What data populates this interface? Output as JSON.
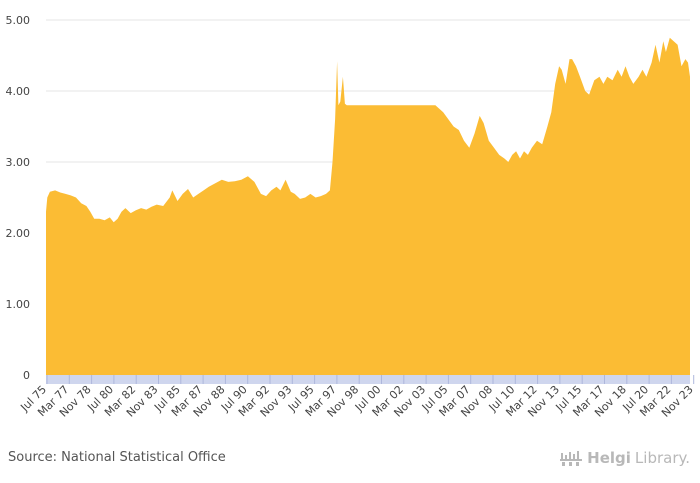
{
  "source_text": "Source: National Statistical Office",
  "logo": {
    "name": "HelgiLibrary.",
    "part1": "Helgi",
    "part2": "Library.",
    "icon": "helgi-library-icon"
  },
  "colors": {
    "area": "#fbbc34",
    "grid": "#e6e6e6",
    "axis_band": "#cfd6ee"
  },
  "chart_data": {
    "type": "area",
    "title": "",
    "xlabel": "",
    "ylabel": "",
    "ylim": [
      0,
      5
    ],
    "yticks": [
      "0",
      "1.00",
      "2.00",
      "3.00",
      "4.00",
      "5.00"
    ],
    "ytick_values": [
      0,
      1,
      2,
      3,
      4,
      5
    ],
    "xtick_labels": [
      "Jul 75",
      "Mar 77",
      "Nov 78",
      "Jul 80",
      "Mar 82",
      "Nov 83",
      "Jul 85",
      "Mar 87",
      "Nov 88",
      "Jul 90",
      "Mar 92",
      "Nov 93",
      "Jul 95",
      "Mar 97",
      "Nov 98",
      "Jul 00",
      "Mar 02",
      "Nov 03",
      "Jul 05",
      "Mar 07",
      "Nov 08",
      "Jul 10",
      "Mar 12",
      "Nov 13",
      "Jul 15",
      "Mar 17",
      "Nov 18",
      "Jul 20",
      "Mar 22",
      "Nov 23"
    ],
    "grid": true,
    "legend": "none",
    "series": [
      {
        "x": [
          1975.5,
          1975.6,
          1975.8,
          1976.2,
          1976.6,
          1977.0,
          1977.4,
          1977.8,
          1978.2,
          1978.6,
          1978.9,
          1979.2,
          1979.6,
          1980.0,
          1980.4,
          1980.7,
          1981.0,
          1981.3,
          1981.6,
          1982.0,
          1982.4,
          1982.8,
          1983.2,
          1983.6,
          1984.0,
          1984.5,
          1985.0,
          1985.2,
          1985.6,
          1986.0,
          1986.4,
          1986.8,
          1987.2,
          1987.6,
          1988.0,
          1988.5,
          1989.0,
          1989.5,
          1990.0,
          1990.5,
          1991.0,
          1991.5,
          1992.0,
          1992.4,
          1992.8,
          1993.2,
          1993.5,
          1993.9,
          1994.3,
          1994.6,
          1995.0,
          1995.4,
          1995.8,
          1996.2,
          1996.6,
          1997.0,
          1997.3,
          1997.5,
          1997.7,
          1997.85,
          1997.95,
          1998.1,
          1998.3,
          1998.45,
          1998.6,
          1998.8,
          2000.0,
          2002.0,
          2004.0,
          2005.4,
          2005.7,
          2006.0,
          2006.4,
          2006.8,
          2007.2,
          2007.6,
          2008.0,
          2008.4,
          2008.8,
          2009.1,
          2009.5,
          2009.9,
          2010.3,
          2010.7,
          2011.0,
          2011.3,
          2011.6,
          2011.9,
          2012.2,
          2012.5,
          2012.8,
          2013.2,
          2013.6,
          2014.0,
          2014.3,
          2014.6,
          2014.9,
          2015.1,
          2015.4,
          2015.7,
          2015.9,
          2016.2,
          2016.5,
          2016.9,
          2017.2,
          2017.6,
          2018.0,
          2018.3,
          2018.6,
          2019.0,
          2019.4,
          2019.7,
          2020.0,
          2020.3,
          2020.6,
          2021.0,
          2021.3,
          2021.6,
          2022.0,
          2022.3,
          2022.6,
          2022.9,
          2023.1,
          2023.4,
          2023.7,
          2024.0,
          2024.3,
          2024.6,
          2024.8,
          2024.95
        ],
        "y": [
          2.3,
          2.5,
          2.58,
          2.6,
          2.57,
          2.55,
          2.53,
          2.5,
          2.42,
          2.38,
          2.3,
          2.2,
          2.2,
          2.18,
          2.22,
          2.15,
          2.2,
          2.3,
          2.35,
          2.28,
          2.32,
          2.35,
          2.33,
          2.37,
          2.4,
          2.38,
          2.5,
          2.6,
          2.45,
          2.55,
          2.62,
          2.5,
          2.55,
          2.6,
          2.65,
          2.7,
          2.75,
          2.72,
          2.73,
          2.75,
          2.8,
          2.72,
          2.55,
          2.52,
          2.6,
          2.65,
          2.6,
          2.75,
          2.58,
          2.55,
          2.48,
          2.5,
          2.55,
          2.5,
          2.52,
          2.55,
          2.6,
          3.0,
          3.6,
          4.42,
          3.8,
          3.85,
          4.2,
          3.82,
          3.8,
          3.8,
          3.8,
          3.8,
          3.8,
          3.8,
          3.75,
          3.7,
          3.6,
          3.5,
          3.45,
          3.3,
          3.2,
          3.4,
          3.65,
          3.55,
          3.3,
          3.2,
          3.1,
          3.05,
          3.0,
          3.1,
          3.15,
          3.05,
          3.15,
          3.1,
          3.2,
          3.3,
          3.25,
          3.5,
          3.7,
          4.1,
          4.35,
          4.3,
          4.1,
          4.45,
          4.45,
          4.35,
          4.2,
          4.0,
          3.95,
          4.15,
          4.2,
          4.1,
          4.2,
          4.15,
          4.3,
          4.2,
          4.35,
          4.2,
          4.1,
          4.2,
          4.3,
          4.2,
          4.4,
          4.65,
          4.4,
          4.7,
          4.55,
          4.75,
          4.7,
          4.65,
          4.35,
          4.45,
          4.4,
          4.2
        ]
      }
    ]
  }
}
